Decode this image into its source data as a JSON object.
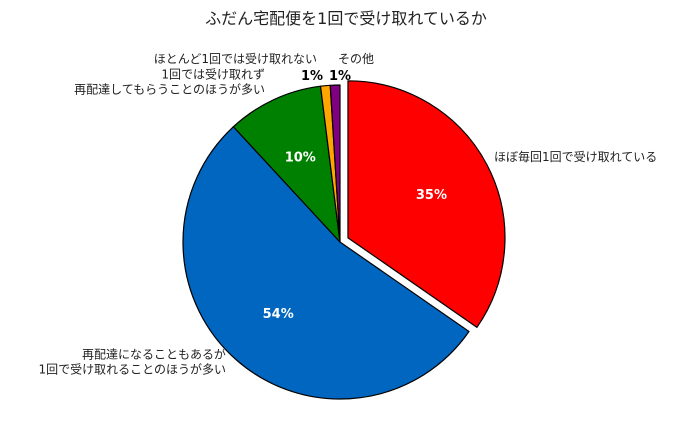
{
  "chart_data": {
    "type": "pie",
    "title": "ふだん宅配便を1回で受け取れているか",
    "slices": [
      {
        "label": "ほぼ毎回1回で受け取れている",
        "value": 35,
        "display": "35%",
        "color": "#ff0000",
        "label_color": "#ffffff",
        "exploded": true
      },
      {
        "label": "再配達になることもあるが\n1回で受け取れることのほうが多い",
        "value": 54,
        "display": "54%",
        "color": "#0066c0",
        "label_color": "#ffffff",
        "exploded": false
      },
      {
        "label": "1回では受け取れず\n再配達してもらうことのほうが多い",
        "value": 10,
        "display": "10%",
        "color": "#008000",
        "label_color": "#ffffff",
        "exploded": false
      },
      {
        "label": "ほとんど1回では受け取れない",
        "value": 1,
        "display": "1%",
        "color": "#ffa500",
        "label_color": "#000000",
        "exploded": false
      },
      {
        "label": "その他",
        "value": 1,
        "display": "1%",
        "color": "#800080",
        "label_color": "#000000",
        "exploded": false
      }
    ],
    "start_angle": "12 o'clock",
    "direction": "clockwise",
    "legend": "none"
  }
}
